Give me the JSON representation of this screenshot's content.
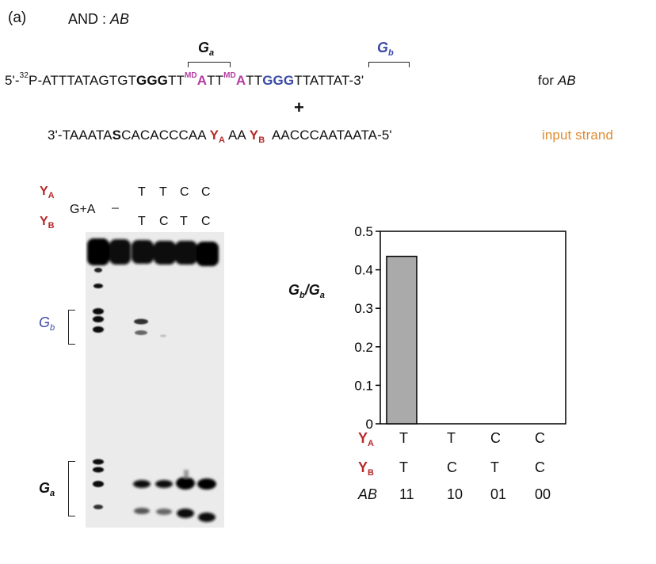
{
  "panel_label": "(a)",
  "title": {
    "text": "AND : ",
    "italic": "AB"
  },
  "ga_label": {
    "base": "G",
    "sub": "a"
  },
  "gb_label": {
    "base": "G",
    "sub": "b"
  },
  "top_strand": {
    "prefix": "5'-",
    "isotope": "32",
    "p1": "P-ATTTATAGTGT",
    "ggg1": "GGG",
    "p2": "TT",
    "md": "MD",
    "a": "A",
    "p3": "TT",
    "p4": "TT",
    "ggg2": "GGG",
    "p5": "TTATTAT-3'"
  },
  "for_label": {
    "text": "for ",
    "italic": "AB"
  },
  "plus": "+",
  "bottom_strand": {
    "p1": "3'-TAAATA",
    "s": "S",
    "p2": "CACACCCAA",
    "ya": {
      "base": "Y",
      "sub": "A"
    },
    "aa": "AA",
    "yb": {
      "base": "Y",
      "sub": "B"
    },
    "p3": "AACCCAATAATA-5'"
  },
  "input_label": "input strand",
  "gel": {
    "ya_label": {
      "base": "Y",
      "sub": "A"
    },
    "yb_label": {
      "base": "Y",
      "sub": "B"
    },
    "ga_lane": "G+A",
    "dash_lane": "–",
    "ya_row": [
      "T",
      "T",
      "C",
      "C"
    ],
    "yb_row": [
      "T",
      "C",
      "T",
      "C"
    ],
    "gb_bracket": {
      "base": "G",
      "sub": "b"
    },
    "ga_bracket": {
      "base": "G",
      "sub": "a"
    }
  },
  "chart_data": {
    "type": "bar",
    "ylabel": {
      "base": "G",
      "sub_b": "b",
      "slash": "/",
      "base2": "G",
      "sub_a": "a"
    },
    "ylim": [
      0,
      0.5
    ],
    "yticks": [
      "0",
      "0.1",
      "0.2",
      "0.3",
      "0.4",
      "0.5"
    ],
    "values": [
      0.435,
      0,
      0,
      0
    ],
    "row_ya": {
      "label": {
        "base": "Y",
        "sub": "A"
      },
      "values": [
        "T",
        "T",
        "C",
        "C"
      ]
    },
    "row_yb": {
      "label": {
        "base": "Y",
        "sub": "B"
      },
      "values": [
        "T",
        "C",
        "T",
        "C"
      ]
    },
    "row_ab": {
      "label": "AB",
      "values": [
        "11",
        "10",
        "01",
        "00"
      ]
    },
    "colors": {
      "bar": "#aaaaaa",
      "axis": "#000000"
    },
    "grid": false
  }
}
